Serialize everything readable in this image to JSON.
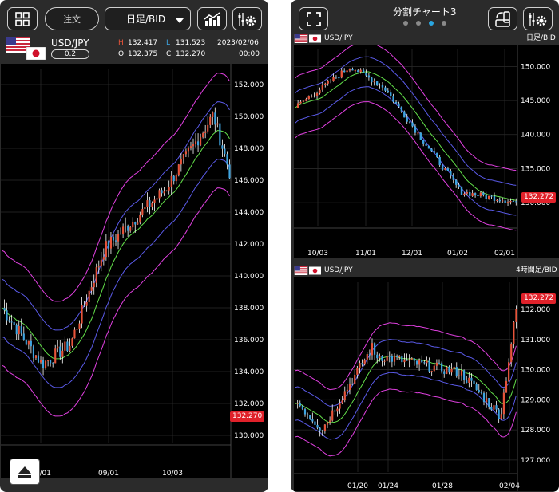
{
  "left": {
    "order_label": "注文",
    "timeframe_label": "日足/BID",
    "pair": "USD/JPY",
    "spread": "0.2",
    "ohlc": {
      "h_key": "H",
      "h_val": "132.417",
      "l_key": "L",
      "l_val": "131.523",
      "o_key": "O",
      "o_val": "132.375",
      "c_key": "C",
      "c_val": "132.270"
    },
    "date": "2023/02/06",
    "time": "00:00",
    "current_price": "132.270",
    "y_ticks": [
      "152.000",
      "150.000",
      "148.000",
      "146.000",
      "144.000",
      "142.000",
      "140.000",
      "138.000",
      "136.000",
      "134.000",
      "132.000",
      "130.000"
    ],
    "x_ticks": [
      "08/01",
      "09/01",
      "10/03"
    ],
    "icons": {
      "layout": "grid-icon",
      "indicator": "chart-trend-icon",
      "settings": "gear-icon",
      "eject": "eject-icon"
    }
  },
  "right": {
    "title": "分割チャート3",
    "pages": 4,
    "active_page": 3,
    "top_chart": {
      "pair": "USD/JPY",
      "timeframe": "日足/BID",
      "current_price": "132.272",
      "y_ticks": [
        "150.000",
        "145.000",
        "140.000",
        "135.000",
        "130.000"
      ],
      "x_ticks": [
        "10/03",
        "11/01",
        "12/01",
        "01/02",
        "02/01"
      ]
    },
    "bottom_chart": {
      "pair": "USD/JPY",
      "timeframe": "4時間足/BID",
      "current_price": "132.272",
      "y_ticks": [
        "132.000",
        "131.000",
        "130.000",
        "129.000",
        "128.000",
        "127.000"
      ],
      "x_ticks": [
        "01/20",
        "01/24",
        "01/28",
        "02/04"
      ]
    },
    "icons": {
      "fullscreen": "fullscreen-icon",
      "rotate": "rotate-screen-icon",
      "settings": "gear-icon"
    }
  },
  "colors": {
    "up": "#e8543a",
    "down": "#3ea4e0",
    "outer_band": "#e040e0",
    "mid_band": "#5a5ae8",
    "ma": "#63e04a",
    "price_badge": "#e0212a"
  }
}
